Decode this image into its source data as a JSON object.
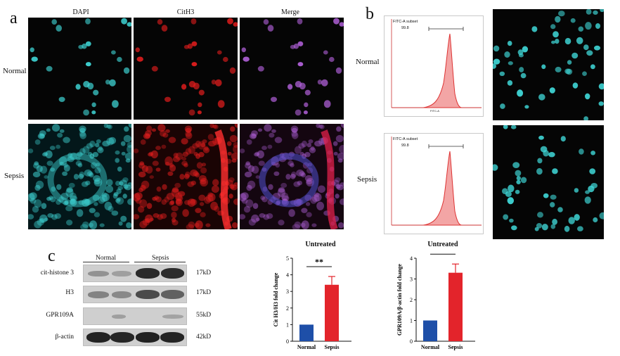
{
  "panels": {
    "a": "a",
    "b": "b",
    "c": "c"
  },
  "panel_a": {
    "columns": [
      "DAPI",
      "CitH3",
      "Merge"
    ],
    "rows": [
      "Normal",
      "Sepsis"
    ]
  },
  "panel_b": {
    "rows": [
      "Normal",
      "Sepsis"
    ],
    "flow_gate_label": "FITC-A subset",
    "flow_gate_value": "99.8",
    "x_axis_label": "FITC-A"
  },
  "panel_c": {
    "groups": [
      "Normal",
      "Sepsis"
    ],
    "blots": [
      {
        "label": "cit-histone 3",
        "kd": "17kD"
      },
      {
        "label": "H3",
        "kd": "17kD"
      },
      {
        "label": "GPR109A",
        "kd": "55kD"
      },
      {
        "label": "β-actin",
        "kd": "42kD"
      }
    ]
  },
  "colors": {
    "normal_bar": "#1e4fa8",
    "sepsis_bar": "#e3242b",
    "dapi": "#3fd6d6",
    "cith3": "#e01d1d",
    "merge": "#b060d8"
  },
  "chart_data": [
    {
      "type": "bar",
      "title": "Untreated",
      "categories": [
        "Normal",
        "Sepsis"
      ],
      "values": [
        1.0,
        3.4
      ],
      "errors": [
        0,
        0.5
      ],
      "ylabel": "Cit H3/H3 fold change",
      "xlabel": "",
      "ylim": [
        0,
        5
      ],
      "yticks": [
        "0",
        "1",
        "2",
        "3",
        "4",
        "5"
      ],
      "significance": "**",
      "grid": false
    },
    {
      "type": "bar",
      "title": "Untreated",
      "categories": [
        "Normal",
        "Sepsis"
      ],
      "values": [
        1.0,
        3.3
      ],
      "errors": [
        0,
        0.42
      ],
      "ylabel": "GPR109A/β-actin fold change",
      "xlabel": "",
      "ylim": [
        0,
        4
      ],
      "yticks": [
        "0",
        "1",
        "2",
        "3",
        "4"
      ],
      "significance": "***",
      "grid": false
    }
  ]
}
